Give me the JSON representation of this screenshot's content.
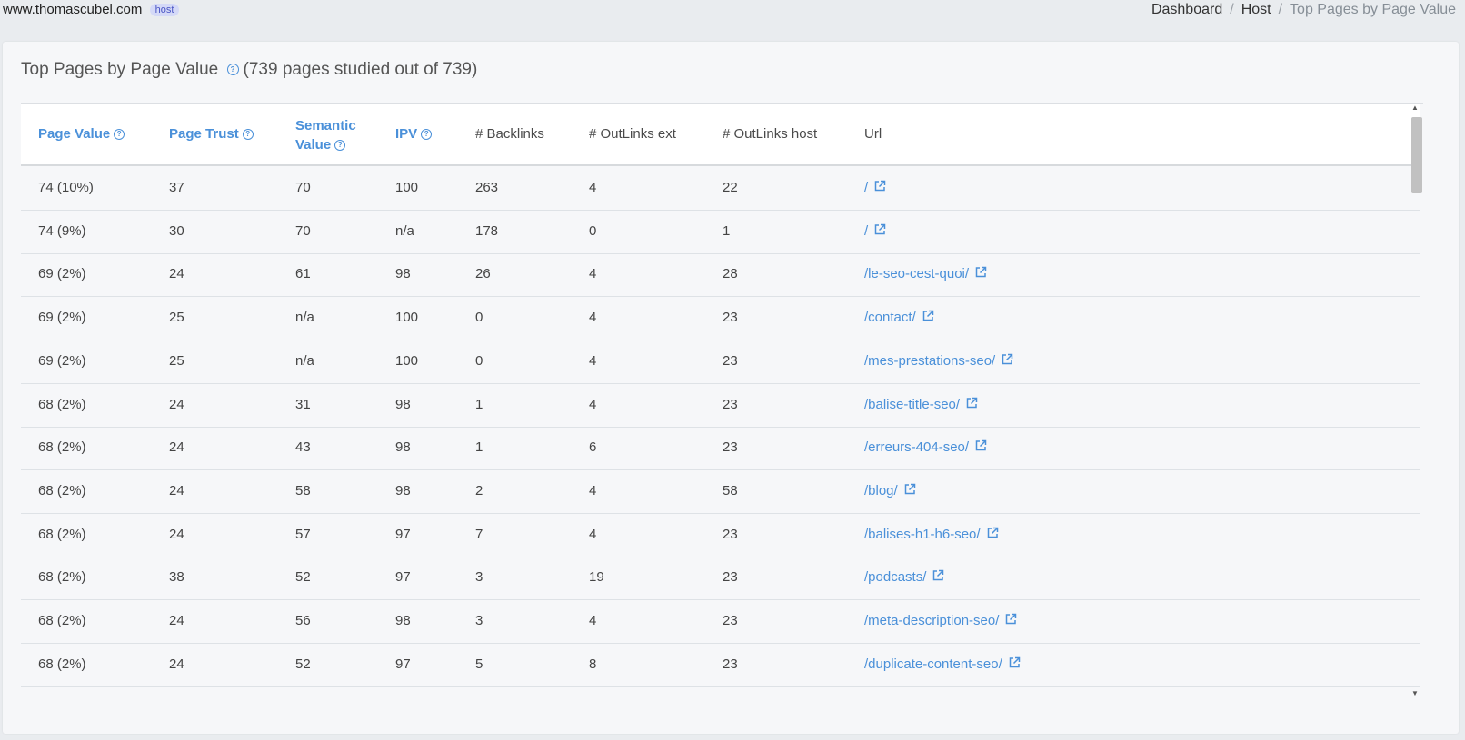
{
  "header": {
    "site": "www.thomascubel.com",
    "badge": "host",
    "breadcrumb": [
      "Dashboard",
      "Host",
      "Top Pages by Page Value"
    ]
  },
  "card": {
    "title": "Top Pages by Page Value",
    "subtitle": "(739 pages studied out of 739)"
  },
  "table": {
    "columns": {
      "page_value": "Page Value",
      "page_trust": "Page Trust",
      "semantic_value_1": "Semantic",
      "semantic_value_2": "Value",
      "ipv": "IPV",
      "backlinks": "# Backlinks",
      "outlinks_ext": "# OutLinks ext",
      "outlinks_host": "# OutLinks host",
      "url": "Url"
    },
    "rows": [
      {
        "page_value": "74 (10%)",
        "page_trust": "37",
        "semantic": "70",
        "ipv": "100",
        "backlinks": "263",
        "out_ext": "4",
        "out_host": "22",
        "url": "/"
      },
      {
        "page_value": "74 (9%)",
        "page_trust": "30",
        "semantic": "70",
        "ipv": "n/a",
        "backlinks": "178",
        "out_ext": "0",
        "out_host": "1",
        "url": "/"
      },
      {
        "page_value": "69 (2%)",
        "page_trust": "24",
        "semantic": "61",
        "ipv": "98",
        "backlinks": "26",
        "out_ext": "4",
        "out_host": "28",
        "url": "/le-seo-cest-quoi/"
      },
      {
        "page_value": "69 (2%)",
        "page_trust": "25",
        "semantic": "n/a",
        "ipv": "100",
        "backlinks": "0",
        "out_ext": "4",
        "out_host": "23",
        "url": "/contact/"
      },
      {
        "page_value": "69 (2%)",
        "page_trust": "25",
        "semantic": "n/a",
        "ipv": "100",
        "backlinks": "0",
        "out_ext": "4",
        "out_host": "23",
        "url": "/mes-prestations-seo/"
      },
      {
        "page_value": "68 (2%)",
        "page_trust": "24",
        "semantic": "31",
        "ipv": "98",
        "backlinks": "1",
        "out_ext": "4",
        "out_host": "23",
        "url": "/balise-title-seo/"
      },
      {
        "page_value": "68 (2%)",
        "page_trust": "24",
        "semantic": "43",
        "ipv": "98",
        "backlinks": "1",
        "out_ext": "6",
        "out_host": "23",
        "url": "/erreurs-404-seo/"
      },
      {
        "page_value": "68 (2%)",
        "page_trust": "24",
        "semantic": "58",
        "ipv": "98",
        "backlinks": "2",
        "out_ext": "4",
        "out_host": "58",
        "url": "/blog/"
      },
      {
        "page_value": "68 (2%)",
        "page_trust": "24",
        "semantic": "57",
        "ipv": "97",
        "backlinks": "7",
        "out_ext": "4",
        "out_host": "23",
        "url": "/balises-h1-h6-seo/"
      },
      {
        "page_value": "68 (2%)",
        "page_trust": "38",
        "semantic": "52",
        "ipv": "97",
        "backlinks": "3",
        "out_ext": "19",
        "out_host": "23",
        "url": "/podcasts/"
      },
      {
        "page_value": "68 (2%)",
        "page_trust": "24",
        "semantic": "56",
        "ipv": "98",
        "backlinks": "3",
        "out_ext": "4",
        "out_host": "23",
        "url": "/meta-description-seo/"
      },
      {
        "page_value": "68 (2%)",
        "page_trust": "24",
        "semantic": "52",
        "ipv": "97",
        "backlinks": "5",
        "out_ext": "8",
        "out_host": "23",
        "url": "/duplicate-content-seo/"
      }
    ]
  },
  "icons": {
    "help": "question-circle-icon",
    "external": "external-link-icon"
  },
  "colors": {
    "link": "#4a90d9",
    "badge_bg": "#d4d9f7",
    "badge_text": "#4a55c4"
  }
}
